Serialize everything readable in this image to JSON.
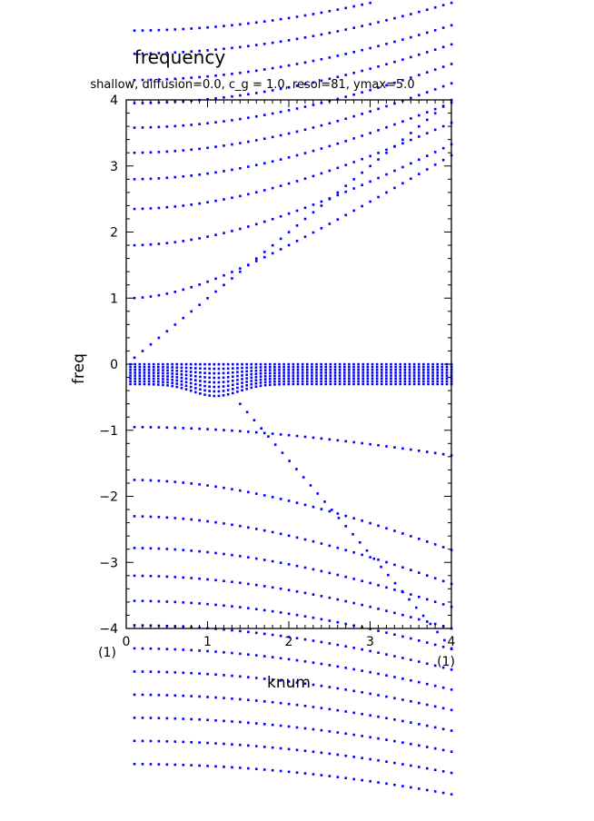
{
  "chart_data": {
    "type": "scatter",
    "title": "frequency",
    "subtitle": "shallow, diffusion=0.0, c_g = 1.0, resol=81, ymax=5.0",
    "xlabel": "knum",
    "ylabel": "freq",
    "xlim": [
      0,
      4
    ],
    "ylim": [
      -4,
      4
    ],
    "x_ticks": [
      "0",
      "1",
      "2",
      "3",
      "4"
    ],
    "y_ticks": [
      "−4",
      "−3",
      "−2",
      "−1",
      "0",
      "1",
      "2",
      "3",
      "4"
    ],
    "x_unit_left": "(1)",
    "x_unit_right": "(1)",
    "marker_color": "#0000ff",
    "grid": false,
    "k_range": [
      0,
      4
    ],
    "points_per_branch": 40,
    "series": [
      {
        "kind": "inertia-gravity",
        "sign": 1,
        "f": 0.0,
        "c": 1.0
      },
      {
        "kind": "inertia-gravity",
        "sign": 1,
        "f": 1.0,
        "c": 0.75
      },
      {
        "kind": "inertia-gravity",
        "sign": 1,
        "f": 1.8,
        "c": 0.7
      },
      {
        "kind": "inertia-gravity",
        "sign": 1,
        "f": 2.35,
        "c": 0.7
      },
      {
        "kind": "inertia-gravity",
        "sign": 1,
        "f": 2.8,
        "c": 0.7
      },
      {
        "kind": "inertia-gravity",
        "sign": 1,
        "f": 3.2,
        "c": 0.7
      },
      {
        "kind": "inertia-gravity",
        "sign": 1,
        "f": 3.58,
        "c": 0.7
      },
      {
        "kind": "inertia-gravity",
        "sign": 1,
        "f": 3.95,
        "c": 0.7
      },
      {
        "kind": "inertia-gravity",
        "sign": 1,
        "f": 4.3,
        "c": 0.7
      },
      {
        "kind": "inertia-gravity",
        "sign": 1,
        "f": 4.7,
        "c": 0.7
      },
      {
        "kind": "inertia-gravity",
        "sign": 1,
        "f": 5.05,
        "c": 0.7
      },
      {
        "kind": "inertia-gravity",
        "sign": -1,
        "f": 0.95,
        "c": 0.25
      },
      {
        "kind": "inertia-gravity",
        "sign": -1,
        "f": 1.75,
        "c": 0.55
      },
      {
        "kind": "inertia-gravity",
        "sign": -1,
        "f": 2.3,
        "c": 0.6
      },
      {
        "kind": "inertia-gravity",
        "sign": -1,
        "f": 2.78,
        "c": 0.6
      },
      {
        "kind": "inertia-gravity",
        "sign": -1,
        "f": 3.2,
        "c": 0.6
      },
      {
        "kind": "inertia-gravity",
        "sign": -1,
        "f": 3.58,
        "c": 0.6
      },
      {
        "kind": "inertia-gravity",
        "sign": -1,
        "f": 3.95,
        "c": 0.6
      },
      {
        "kind": "inertia-gravity",
        "sign": -1,
        "f": 4.3,
        "c": 0.6
      },
      {
        "kind": "inertia-gravity",
        "sign": -1,
        "f": 4.65,
        "c": 0.6
      },
      {
        "kind": "inertia-gravity",
        "sign": -1,
        "f": 5.0,
        "c": 0.6
      },
      {
        "kind": "inertia-gravity",
        "sign": -1,
        "f": 5.35,
        "c": 0.6
      },
      {
        "kind": "inertia-gravity",
        "sign": -1,
        "f": 5.7,
        "c": 0.6
      },
      {
        "kind": "inertia-gravity",
        "sign": -1,
        "f": 6.05,
        "c": 0.6
      },
      {
        "kind": "linear",
        "points": [
          [
            1.4,
            -0.6
          ],
          [
            4.0,
            -4.3
          ]
        ]
      },
      {
        "kind": "rossby-cluster",
        "k_range": [
          0.05,
          4.0
        ],
        "count": 70,
        "depth": 0.3
      }
    ]
  }
}
